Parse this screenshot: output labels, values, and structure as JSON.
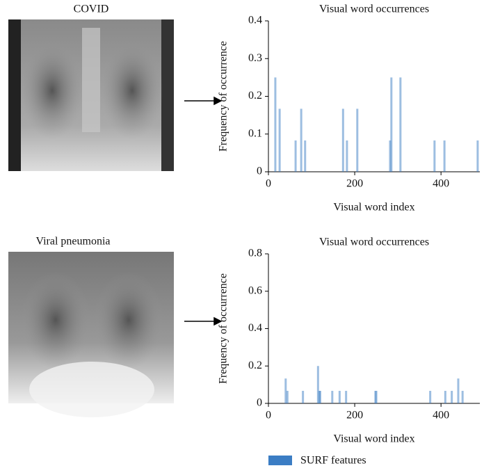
{
  "chart_data": [
    {
      "type": "bar",
      "image_label": "COVID",
      "title": "Visual word occurrences",
      "xlabel": "Visual word index",
      "ylabel": "Frequency of occurrence",
      "x": [
        16,
        26,
        63,
        76,
        85,
        173,
        182,
        206,
        282,
        285,
        306,
        385,
        408,
        485
      ],
      "values": [
        0.25,
        0.167,
        0.083,
        0.167,
        0.083,
        0.167,
        0.083,
        0.167,
        0.083,
        0.25,
        0.25,
        0.083,
        0.083,
        0.083
      ],
      "color": "#3b7dc4",
      "xlim": [
        0,
        490
      ],
      "xticks": [
        0,
        200,
        400
      ],
      "ylim": [
        0,
        0.4
      ],
      "yticks": [
        0,
        0.1,
        0.2,
        0.3,
        0.4
      ]
    },
    {
      "type": "bar",
      "image_label": "Viral pneumonia",
      "title": "Visual word occurrences",
      "xlabel": "Visual word index",
      "ylabel": "Frequency of occurrence",
      "x": [
        40,
        44,
        80,
        115,
        118,
        120,
        148,
        165,
        180,
        248,
        250,
        375,
        410,
        425,
        440,
        450
      ],
      "series": [
        {
          "name": "SURF features",
          "color": "#3b7dc4",
          "values": [
            0.133,
            0.067,
            0.067,
            0.2,
            0.067,
            0.067,
            0.067,
            0.067,
            0.067,
            0.067,
            0.067,
            0.067,
            0.067,
            0.067,
            0.133,
            0.067
          ]
        }
      ],
      "xlim": [
        0,
        490
      ],
      "xticks": [
        0,
        200,
        400
      ],
      "ylim": [
        0,
        0.8
      ],
      "yticks": [
        0,
        0.2,
        0.4,
        0.6,
        0.8
      ]
    }
  ]
}
